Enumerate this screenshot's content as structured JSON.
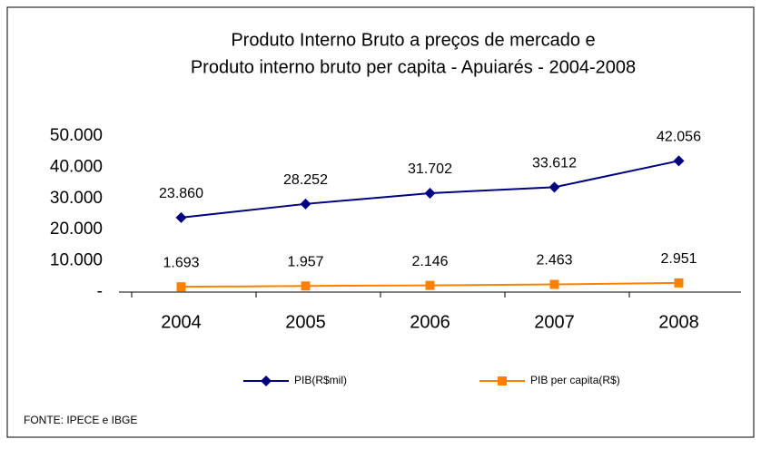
{
  "chart_data": {
    "type": "line",
    "title": [
      "Produto Interno Bruto a preços de mercado  e",
      "Produto interno bruto per capita - Apuiarés - 2004-2008"
    ],
    "categories": [
      "2004",
      "2005",
      "2006",
      "2007",
      "2008"
    ],
    "series": [
      {
        "name": "PIB(R$mil)",
        "color": "#000080",
        "marker": "diamond",
        "values": [
          23860,
          28252,
          31702,
          33612,
          42056
        ],
        "value_labels": [
          "23.860",
          "28.252",
          "31.702",
          "33.612",
          "42.056"
        ]
      },
      {
        "name": "PIB per capita(R$)",
        "color": "#ff8000",
        "marker": "square",
        "values": [
          1693,
          1957,
          2146,
          2463,
          2951
        ],
        "value_labels": [
          "1.693",
          "1.957",
          "2.146",
          "2.463",
          "2.951"
        ]
      }
    ],
    "ylim": [
      0,
      50000
    ],
    "yticks": [
      {
        "value": 0,
        "label": "-"
      },
      {
        "value": 10000,
        "label": "10.000"
      },
      {
        "value": 20000,
        "label": "20.000"
      },
      {
        "value": 30000,
        "label": "30.000"
      },
      {
        "value": 40000,
        "label": "40.000"
      },
      {
        "value": 50000,
        "label": "50.000"
      }
    ],
    "grid": false,
    "legend": "bottom",
    "source": "FONTE: IPECE e IBGE"
  }
}
